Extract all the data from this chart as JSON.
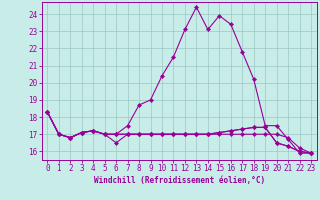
{
  "xlabel": "Windchill (Refroidissement éolien,°C)",
  "ylabel": "",
  "xlim": [
    -0.5,
    23.5
  ],
  "ylim": [
    15.5,
    24.7
  ],
  "yticks": [
    16,
    17,
    18,
    19,
    20,
    21,
    22,
    23,
    24
  ],
  "xticks": [
    0,
    1,
    2,
    3,
    4,
    5,
    6,
    7,
    8,
    9,
    10,
    11,
    12,
    13,
    14,
    15,
    16,
    17,
    18,
    19,
    20,
    21,
    22,
    23
  ],
  "background_color": "#c8ece8",
  "grid_color": "#9ac8c4",
  "line_color": "#990099",
  "series": [
    [
      18.3,
      17.0,
      16.8,
      17.1,
      17.2,
      17.0,
      17.0,
      17.5,
      18.7,
      19.0,
      20.4,
      21.5,
      23.1,
      24.4,
      23.1,
      23.9,
      23.4,
      21.8,
      20.2,
      17.5,
      17.5,
      16.7,
      15.9,
      15.9
    ],
    [
      18.3,
      17.0,
      16.8,
      17.1,
      17.2,
      17.0,
      16.5,
      17.0,
      17.0,
      17.0,
      17.0,
      17.0,
      17.0,
      17.0,
      17.0,
      17.1,
      17.2,
      17.3,
      17.4,
      17.4,
      16.5,
      16.3,
      16.0,
      15.9
    ],
    [
      18.3,
      17.0,
      16.8,
      17.1,
      17.2,
      17.0,
      17.0,
      17.0,
      17.0,
      17.0,
      17.0,
      17.0,
      17.0,
      17.0,
      17.0,
      17.0,
      17.0,
      17.0,
      17.0,
      17.0,
      17.0,
      16.8,
      16.2,
      15.9
    ],
    [
      18.3,
      17.0,
      16.8,
      17.1,
      17.2,
      17.0,
      17.0,
      17.0,
      17.0,
      17.0,
      17.0,
      17.0,
      17.0,
      17.0,
      17.0,
      17.1,
      17.2,
      17.3,
      17.4,
      17.4,
      16.5,
      16.3,
      16.0,
      15.9
    ]
  ],
  "marker": "D",
  "marker_size": 2.2,
  "linewidth": 0.8,
  "tick_fontsize": 5.5,
  "xlabel_fontsize": 5.5
}
